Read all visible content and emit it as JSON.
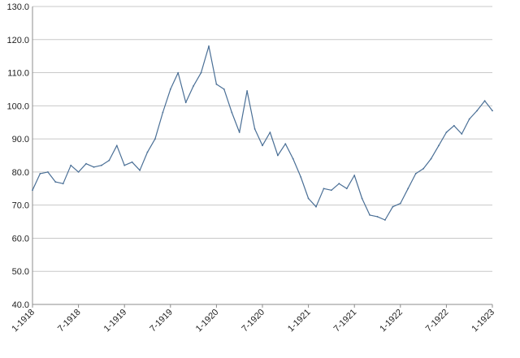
{
  "chart_data": {
    "type": "line",
    "title": "",
    "xlabel": "",
    "ylabel": "",
    "ylim": [
      40,
      130
    ],
    "y_ticks": [
      "40.0",
      "50.0",
      "60.0",
      "70.0",
      "80.0",
      "90.0",
      "100.0",
      "110.0",
      "120.0",
      "130.0"
    ],
    "x_ticks": [
      "1-1918",
      "7-1918",
      "1-1919",
      "7-1919",
      "1-1920",
      "7-1920",
      "1-1921",
      "7-1921",
      "1-1922",
      "7-1922",
      "1-1923"
    ],
    "grid": "horizontal",
    "legend": "none",
    "colors": {
      "series": "#4a6f96",
      "grid": "#c8c8c8",
      "axis": "#8c8c8c"
    },
    "series": [
      {
        "x": [
          "1918-01",
          "1918-02",
          "1918-03",
          "1918-04",
          "1918-05",
          "1918-06",
          "1918-07",
          "1918-08",
          "1918-09",
          "1918-10",
          "1918-11",
          "1918-12",
          "1919-01",
          "1919-02",
          "1919-03",
          "1919-04",
          "1919-05",
          "1919-06",
          "1919-07",
          "1919-08",
          "1919-09",
          "1919-10",
          "1919-11",
          "1919-12",
          "1920-01",
          "1920-02",
          "1920-03",
          "1920-04",
          "1920-05",
          "1920-06",
          "1920-07",
          "1920-08",
          "1920-09",
          "1920-10",
          "1920-11",
          "1920-12",
          "1921-01",
          "1921-02",
          "1921-03",
          "1921-04",
          "1921-05",
          "1921-06",
          "1921-07",
          "1921-08",
          "1921-09",
          "1921-10",
          "1921-11",
          "1921-12",
          "1922-01",
          "1922-02",
          "1922-03",
          "1922-04",
          "1922-05",
          "1922-06",
          "1922-07",
          "1922-08",
          "1922-09",
          "1922-10",
          "1922-11",
          "1922-12",
          "1923-01"
        ],
        "values": [
          74.5,
          79.5,
          80.0,
          77.0,
          76.5,
          82.0,
          80.0,
          82.5,
          81.5,
          82.0,
          83.5,
          88.0,
          82.0,
          83.0,
          80.5,
          86.0,
          90.0,
          98.0,
          105.0,
          110.0,
          101.0,
          106.0,
          110.0,
          118.0,
          106.5,
          105.0,
          98.0,
          92.0,
          104.5,
          93.0,
          88.0,
          92.0,
          85.0,
          88.5,
          84.0,
          78.5,
          72.0,
          69.5,
          75.0,
          74.5,
          76.5,
          75.0,
          79.0,
          72.0,
          67.0,
          66.5,
          65.5,
          69.5,
          70.5,
          75.0,
          79.5,
          81.0,
          84.0,
          88.0,
          92.0,
          94.0,
          91.5,
          96.0,
          98.5,
          101.5,
          98.5
        ]
      }
    ]
  }
}
